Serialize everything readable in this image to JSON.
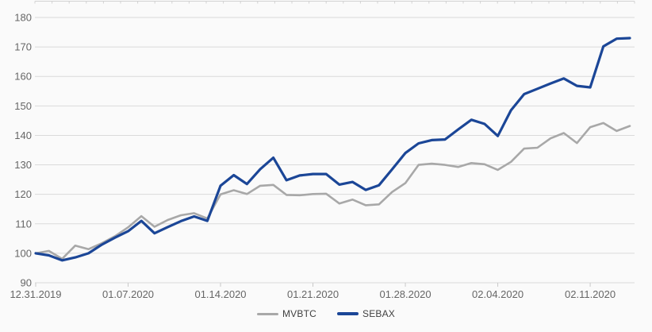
{
  "chart_data": {
    "type": "line",
    "title": "",
    "xlabel": "",
    "ylabel": "",
    "ylim": [
      90,
      180
    ],
    "y_ticks": [
      90,
      100,
      110,
      120,
      130,
      140,
      150,
      160,
      170,
      180
    ],
    "x_axis_tick_labels": [
      "12.31.2019",
      "01.07.2020",
      "01.14.2020",
      "01.21.2020",
      "01.28.2020",
      "02.04.2020",
      "02.11.2020"
    ],
    "grid": "horizontal",
    "legend_position": "bottom-center",
    "background_color": "#fafafa",
    "gridline_color": "#dadada",
    "axis_label_color": "#666666",
    "x_dates": [
      "12.31.2019",
      "01.01.2020",
      "01.02.2020",
      "01.03.2020",
      "01.04.2020",
      "01.05.2020",
      "01.06.2020",
      "01.07.2020",
      "01.08.2020",
      "01.09.2020",
      "01.10.2020",
      "01.11.2020",
      "01.12.2020",
      "01.13.2020",
      "01.14.2020",
      "01.15.2020",
      "01.16.2020",
      "01.17.2020",
      "01.18.2020",
      "01.19.2020",
      "01.20.2020",
      "01.21.2020",
      "01.22.2020",
      "01.23.2020",
      "01.24.2020",
      "01.25.2020",
      "01.26.2020",
      "01.27.2020",
      "01.28.2020",
      "01.29.2020",
      "01.30.2020",
      "01.31.2020",
      "02.01.2020",
      "02.02.2020",
      "02.03.2020",
      "02.04.2020",
      "02.05.2020",
      "02.06.2020",
      "02.07.2020",
      "02.08.2020",
      "02.09.2020",
      "02.10.2020",
      "02.11.2020",
      "02.12.2020",
      "02.13.2020",
      "02.14.2020"
    ],
    "series": [
      {
        "name": "MVBTC",
        "color": "#a8a8a8",
        "values": [
          100.0,
          100.8,
          98.1,
          102.6,
          101.4,
          103.4,
          105.8,
          108.8,
          112.6,
          109.0,
          111.3,
          112.9,
          113.6,
          111.8,
          120.0,
          121.4,
          120.1,
          122.9,
          123.2,
          119.8,
          119.7,
          120.1,
          120.2,
          116.9,
          118.2,
          116.3,
          116.6,
          120.8,
          123.8,
          130.0,
          130.4,
          130.0,
          129.3,
          130.6,
          130.2,
          128.3,
          131.0,
          135.5,
          135.8,
          139.0,
          140.8,
          137.4,
          142.8,
          144.2,
          141.5,
          143.2
        ]
      },
      {
        "name": "SEBAX",
        "color": "#1b4697",
        "values": [
          100.0,
          99.3,
          97.6,
          98.6,
          100.0,
          102.9,
          105.3,
          107.5,
          111.0,
          106.8,
          108.9,
          110.9,
          112.5,
          111.0,
          122.9,
          126.5,
          123.5,
          128.5,
          132.4,
          124.8,
          126.4,
          126.9,
          126.9,
          123.3,
          124.2,
          121.5,
          123.1,
          128.5,
          134.0,
          137.3,
          138.4,
          138.6,
          142.0,
          145.3,
          143.9,
          139.8,
          148.5,
          154.0,
          155.8,
          157.6,
          159.3,
          156.8,
          156.3,
          170.2,
          172.8,
          173.0
        ]
      }
    ]
  },
  "legend": {
    "items": [
      {
        "label": "MVBTC"
      },
      {
        "label": "SEBAX"
      }
    ]
  }
}
